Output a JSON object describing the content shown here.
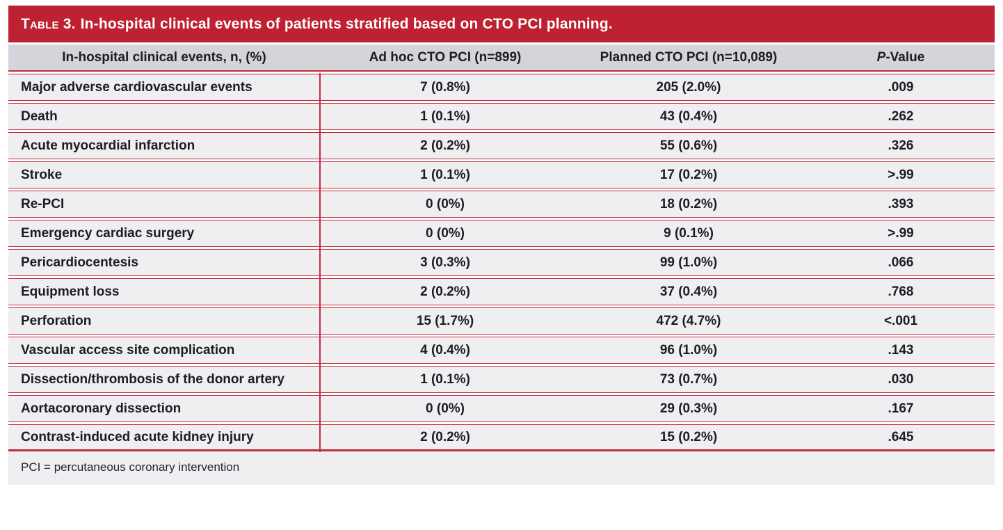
{
  "table": {
    "label": "Table 3.",
    "title": "In-hospital clinical events of patients stratified based on CTO PCI planning.",
    "columns": {
      "event": "In-hospital clinical events, n, (%)",
      "adhoc": "Ad hoc CTO PCI (n=899)",
      "planned": "Planned CTO PCI (n=10,089)",
      "pvalue": "P-Value"
    },
    "rows": [
      {
        "event": "Major adverse cardiovascular events",
        "adhoc": "7 (0.8%)",
        "planned": "205 (2.0%)",
        "pvalue": ".009"
      },
      {
        "event": "Death",
        "adhoc": "1 (0.1%)",
        "planned": "43 (0.4%)",
        "pvalue": ".262"
      },
      {
        "event": "Acute myocardial infarction",
        "adhoc": "2 (0.2%)",
        "planned": "55 (0.6%)",
        "pvalue": ".326"
      },
      {
        "event": "Stroke",
        "adhoc": "1 (0.1%)",
        "planned": "17 (0.2%)",
        "pvalue": ">.99"
      },
      {
        "event": "Re-PCI",
        "adhoc": "0 (0%)",
        "planned": "18 (0.2%)",
        "pvalue": ".393"
      },
      {
        "event": "Emergency cardiac surgery",
        "adhoc": "0 (0%)",
        "planned": "9 (0.1%)",
        "pvalue": ">.99"
      },
      {
        "event": "Pericardiocentesis",
        "adhoc": "3 (0.3%)",
        "planned": "99 (1.0%)",
        "pvalue": ".066"
      },
      {
        "event": "Equipment loss",
        "adhoc": "2 (0.2%)",
        "planned": "37 (0.4%)",
        "pvalue": ".768"
      },
      {
        "event": "Perforation",
        "adhoc": "15 (1.7%)",
        "planned": "472 (4.7%)",
        "pvalue": "<.001"
      },
      {
        "event": "Vascular access site complication",
        "adhoc": "4 (0.4%)",
        "planned": "96 (1.0%)",
        "pvalue": ".143"
      },
      {
        "event": "Dissection/thrombosis of the donor artery",
        "adhoc": "1 (0.1%)",
        "planned": "73 (0.7%)",
        "pvalue": ".030"
      },
      {
        "event": "Aortacoronary dissection",
        "adhoc": "0 (0%)",
        "planned": "29 (0.3%)",
        "pvalue": ".167"
      },
      {
        "event": "Contrast-induced acute kidney injury",
        "adhoc": "2 (0.2%)",
        "planned": "15 (0.2%)",
        "pvalue": ".645"
      }
    ],
    "footnote": "PCI = percutaneous coronary intervention"
  },
  "colors": {
    "red_bar": "#be2132",
    "rule_red": "#c32b3c",
    "header_row_bg": "#d5d4db",
    "body_row_bg": "#efeef1",
    "text": "#1d1c21"
  }
}
